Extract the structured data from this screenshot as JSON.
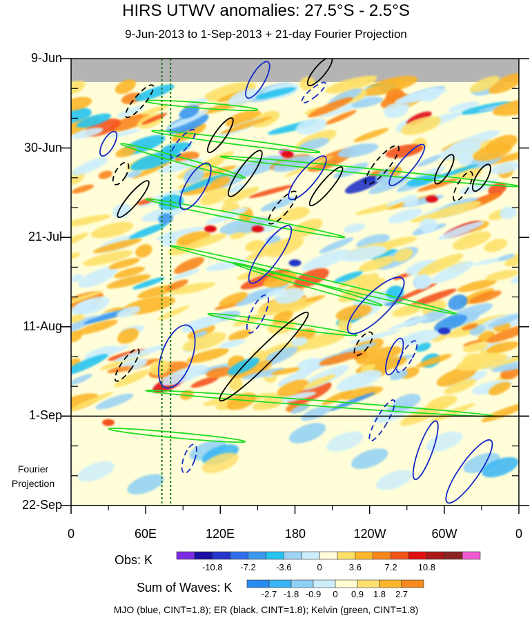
{
  "chart_data": {
    "type": "heatmap",
    "title": "HIRS UTWV anomalies: 27.5°S - 2.5°S",
    "subtitle": "9-Jun-2013 to 1-Sep-2013 + 21-day Fourier Projection",
    "y_ticks": [
      "9-Jun",
      "30-Jun",
      "21-Jul",
      "11-Aug",
      "1-Sep",
      "22-Sep"
    ],
    "y_days": [
      0,
      21,
      42,
      63,
      84,
      105
    ],
    "x_ticks": [
      "0",
      "60E",
      "120E",
      "180",
      "120W",
      "60W",
      "0"
    ],
    "x_lon": [
      0,
      60,
      120,
      180,
      240,
      300,
      360
    ],
    "projection_label": [
      "Fourier",
      "Projection"
    ],
    "obs_colorbar": {
      "label": "Obs: K",
      "levels": [
        "-10.8",
        "-7.2",
        "-3.6",
        "0",
        "3.6",
        "7.2",
        "10.8"
      ],
      "colors": [
        "#7d2be0",
        "#1a0fa0",
        "#2436c8",
        "#2f6ee8",
        "#3b98ee",
        "#25c3f0",
        "#9fd3f5",
        "#cdeefc",
        "#fffed8",
        "#fde16a",
        "#fbb62a",
        "#f9861a",
        "#f4531a",
        "#e10f14",
        "#aa1818",
        "#8b2424",
        "#f05ad0"
      ]
    },
    "waves_colorbar": {
      "label": "Sum of Waves: K",
      "levels": [
        "-2.7",
        "-1.8",
        "-0.9",
        "0",
        "0.9",
        "1.8",
        "2.7"
      ],
      "colors": [
        "#2a8cf0",
        "#38b6f4",
        "#8fd0f5",
        "#cdeefa",
        "#fffed0",
        "#ffe070",
        "#fbb62a",
        "#f68a1e"
      ]
    },
    "footer": "MJO (blue, CINT=1.8); ER (black, CINT=1.8); Kelvin (green, CINT=1.8)",
    "contour_colors": {
      "mjo": "#1428c8",
      "er": "#000000",
      "kelvin": "#22dd22"
    },
    "reference_lines_lon": [
      73,
      80
    ]
  }
}
